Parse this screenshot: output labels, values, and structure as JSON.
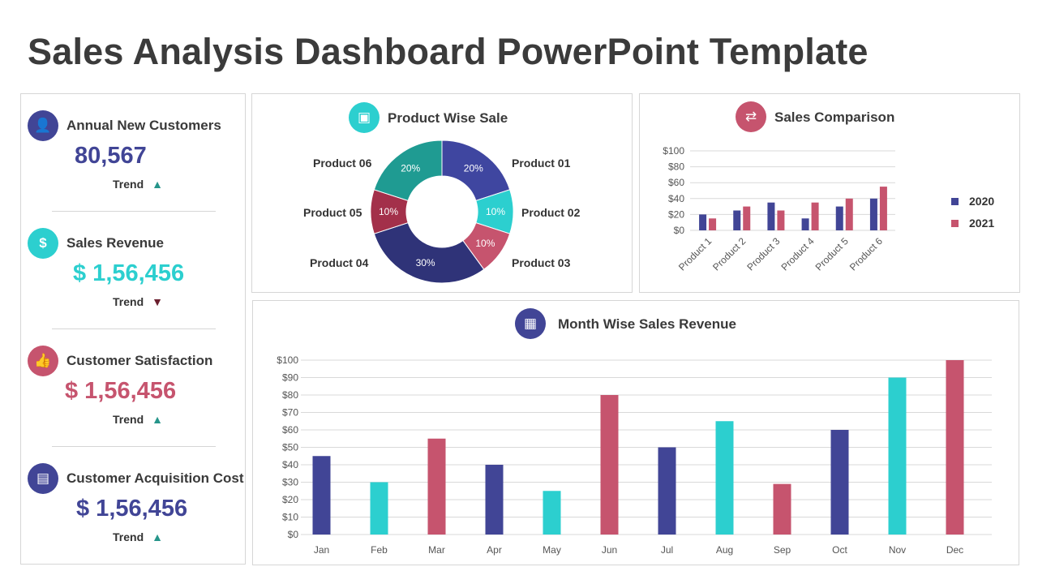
{
  "title": "Sales Analysis Dashboard PowerPoint Template",
  "colors": {
    "navy": "#414596",
    "cyan": "#2ccfcf",
    "pink": "#c6546e",
    "teal": "#1f9b92",
    "crimson": "#a3304a",
    "darknavy": "#2f3378",
    "trend_up": "#26958a",
    "trend_down": "#6b1f2e"
  },
  "kpis": [
    {
      "label": "Annual New Customers",
      "value": "80,567",
      "trend_label": "Trend",
      "trend": "up",
      "icon": "user-icon",
      "color": "#414596"
    },
    {
      "label": "Sales Revenue",
      "value": "$ 1,56,456",
      "trend_label": "Trend",
      "trend": "down",
      "icon": "money-hand-icon",
      "color": "#2ccfcf"
    },
    {
      "label": "Customer Satisfaction",
      "value": "$ 1,56,456",
      "trend_label": "Trend",
      "trend": "up",
      "icon": "thumbs-up-icon",
      "color": "#c6546e"
    },
    {
      "label": "Customer Acquisition Cost",
      "value": "$ 1,56,456",
      "trend_label": "Trend",
      "trend": "up",
      "icon": "cash-icon",
      "color": "#414596"
    }
  ],
  "chart_data": [
    {
      "type": "pie",
      "title": "Product Wise Sale",
      "donut": true,
      "categories": [
        "Product 01",
        "Product 02",
        "Product 03",
        "Product 04",
        "Product 05",
        "Product 06"
      ],
      "values": [
        20,
        10,
        10,
        30,
        10,
        20
      ],
      "labels": [
        "20%",
        "10%",
        "10%",
        "30%",
        "10%",
        "20%"
      ],
      "colors": [
        "#3f46a0",
        "#2ccfcf",
        "#c6546e",
        "#2f3378",
        "#a3304a",
        "#1f9b92"
      ]
    },
    {
      "type": "bar",
      "title": "Sales Comparison",
      "categories": [
        "Product 1",
        "Product 2",
        "Product 3",
        "Product 4",
        "Product 5",
        "Product 6"
      ],
      "series": [
        {
          "name": "2020",
          "values": [
            20,
            25,
            35,
            15,
            30,
            40
          ],
          "color": "#414596"
        },
        {
          "name": "2021",
          "values": [
            15,
            30,
            25,
            35,
            40,
            55
          ],
          "color": "#c6546e"
        }
      ],
      "yticks": [
        "$0",
        "$20",
        "$40",
        "$60",
        "$80",
        "$100"
      ],
      "ylim": [
        0,
        100
      ],
      "grid": true,
      "legend": "right"
    },
    {
      "type": "bar",
      "title": "Month Wise Sales Revenue",
      "categories": [
        "Jan",
        "Feb",
        "Mar",
        "Apr",
        "May",
        "Jun",
        "Jul",
        "Aug",
        "Sep",
        "Oct",
        "Nov",
        "Dec"
      ],
      "values": [
        45,
        30,
        55,
        40,
        25,
        80,
        50,
        65,
        29,
        60,
        90,
        100
      ],
      "colors": [
        "#414596",
        "#2ccfcf",
        "#c6546e",
        "#414596",
        "#2ccfcf",
        "#c6546e",
        "#414596",
        "#2ccfcf",
        "#c6546e",
        "#414596",
        "#2ccfcf",
        "#c6546e"
      ],
      "yticks": [
        "$0",
        "$10",
        "$20",
        "$30",
        "$40",
        "$50",
        "$60",
        "$70",
        "$80",
        "$90",
        "$100"
      ],
      "ylim": [
        0,
        100
      ],
      "grid": true
    }
  ]
}
